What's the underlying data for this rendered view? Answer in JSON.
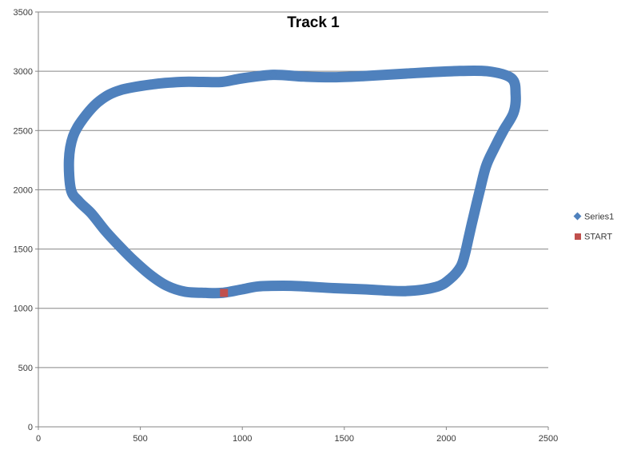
{
  "chart_data": {
    "type": "scatter",
    "title": "Track 1",
    "xlabel": "",
    "ylabel": "",
    "xlim": [
      0,
      2500
    ],
    "ylim": [
      0,
      3500
    ],
    "x_ticks": [
      0,
      500,
      1000,
      1500,
      2000,
      2500
    ],
    "y_ticks": [
      0,
      500,
      1000,
      1500,
      2000,
      2500,
      3000,
      3500
    ],
    "grid": "horizontal",
    "legend_position": "right",
    "series": [
      {
        "name": "Series1",
        "marker": "diamond",
        "color": "#4f81bd",
        "x": [
          900,
          1000,
          1080,
          1200,
          1300,
          1450,
          1600,
          1800,
          1950,
          2020,
          2070,
          2090,
          2110,
          2130,
          2165,
          2195,
          2235,
          2280,
          2330,
          2340,
          2320,
          2200,
          2030,
          1800,
          1600,
          1450,
          1300,
          1150,
          1000,
          900,
          800,
          700,
          560,
          400,
          300,
          220,
          170,
          150,
          160,
          200,
          260,
          330,
          400,
          470,
          550,
          630,
          720,
          820,
          900
        ],
        "y": [
          1130,
          1160,
          1185,
          1190,
          1185,
          1170,
          1160,
          1145,
          1180,
          1250,
          1350,
          1450,
          1600,
          1750,
          2000,
          2200,
          2350,
          2500,
          2650,
          2800,
          2940,
          3000,
          3000,
          2980,
          2960,
          2950,
          2955,
          2970,
          2940,
          2910,
          2910,
          2910,
          2890,
          2840,
          2750,
          2600,
          2450,
          2250,
          2000,
          1900,
          1800,
          1650,
          1520,
          1400,
          1280,
          1190,
          1140,
          1130,
          1130
        ]
      },
      {
        "name": "START",
        "marker": "square",
        "color": "#c0504d",
        "x": [
          910
        ],
        "y": [
          1130
        ]
      }
    ]
  }
}
